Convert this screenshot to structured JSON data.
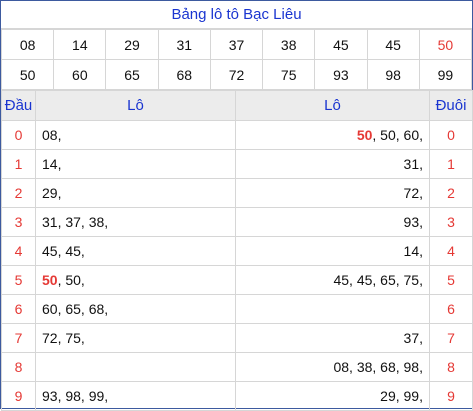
{
  "title": "Bảng lô tô Bạc Liêu",
  "numbers_row1": [
    "08",
    "14",
    "29",
    "31",
    "37",
    "38",
    "45",
    "45",
    "50"
  ],
  "numbers_row2": [
    "50",
    "60",
    "65",
    "68",
    "72",
    "75",
    "93",
    "98",
    "99"
  ],
  "headers": {
    "dau": "Đầu",
    "lo_left": "Lô",
    "lo_right": "Lô",
    "duoi": "Đuôi"
  },
  "rows": [
    {
      "dau": "0",
      "left": [
        "08,"
      ],
      "right": [
        "50",
        ", 50, 60,"
      ],
      "duoi": "0"
    },
    {
      "dau": "1",
      "left": [
        "14,"
      ],
      "right": [
        "",
        "31,"
      ],
      "duoi": "1"
    },
    {
      "dau": "2",
      "left": [
        "29,"
      ],
      "right": [
        "",
        "72,"
      ],
      "duoi": "2"
    },
    {
      "dau": "3",
      "left": [
        "31, 37, 38,"
      ],
      "right": [
        "",
        "93,"
      ],
      "duoi": "3"
    },
    {
      "dau": "4",
      "left": [
        "45, 45,"
      ],
      "right": [
        "",
        "14,"
      ],
      "duoi": "4"
    },
    {
      "dau": "5",
      "left": [
        "50",
        ", 50,"
      ],
      "right": [
        "",
        "45, 45, 65, 75,"
      ],
      "duoi": "5"
    },
    {
      "dau": "6",
      "left": [
        "60, 65, 68,"
      ],
      "right": [
        "",
        ""
      ],
      "duoi": "6"
    },
    {
      "dau": "7",
      "left": [
        "72, 75,"
      ],
      "right": [
        "",
        "37,"
      ],
      "duoi": "7"
    },
    {
      "dau": "8",
      "left": [
        ""
      ],
      "right": [
        "",
        "08, 38, 68, 98,"
      ],
      "duoi": "8"
    },
    {
      "dau": "9",
      "left": [
        "93, 98, 99,"
      ],
      "right": [
        "",
        "29, 99,"
      ],
      "duoi": "9"
    }
  ],
  "colors": {
    "title_blue": "#1a35d0",
    "accent_red": "#e53935",
    "header_bg": "#ececec"
  }
}
